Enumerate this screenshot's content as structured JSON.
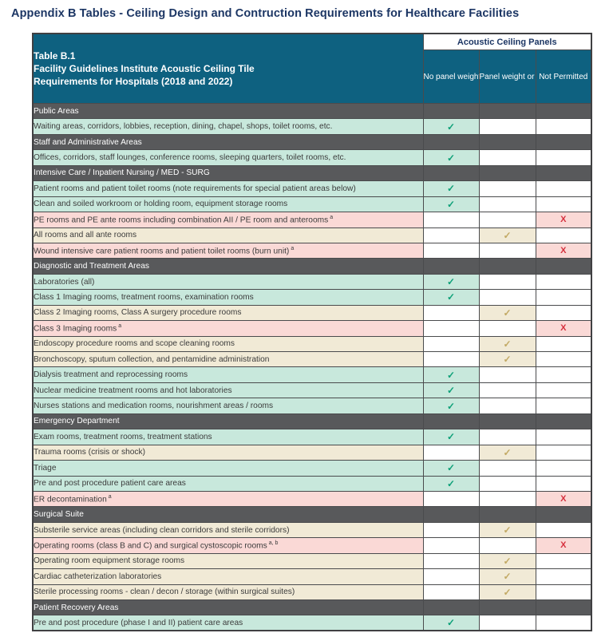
{
  "page_title": "Appendix B Tables - Ceiling Design and Contruction Requirements for Healthcare Facilities",
  "table": {
    "title_lines": [
      "Table B.1",
      "Facility Guidelines Institute Acoustic Ceiling Tile",
      "Requirements for Hospitals (2018 and 2022)"
    ],
    "group_header": "Acoustic Ceiling Panels",
    "columns": [
      "No panel weight or grid gasket requirement",
      "Panel weight or grid gasket requirement",
      "Not Permitted"
    ],
    "marks": {
      "allowed": "✓",
      "conditional": "✓",
      "not_permitted": "X"
    },
    "rows": [
      {
        "type": "section",
        "label": "Public Areas"
      },
      {
        "type": "item",
        "label": "Waiting areas, corridors, lobbies, reception, dining, chapel, shops, toilet rooms, etc.",
        "sup": "",
        "status": "allowed"
      },
      {
        "type": "section",
        "label": "Staff and Administrative Areas"
      },
      {
        "type": "item",
        "label": "Offices, corridors, staff lounges, conference rooms, sleeping quarters, toilet rooms, etc.",
        "sup": "",
        "status": "allowed"
      },
      {
        "type": "section",
        "label": "Intensive Care / Inpatient Nursing / MED - SURG"
      },
      {
        "type": "item",
        "label": "Patient rooms and patient toilet rooms (note requirements for special patient areas below)",
        "sup": "",
        "status": "allowed"
      },
      {
        "type": "item",
        "label": "Clean and soiled workroom or holding room, equipment storage rooms",
        "sup": "",
        "status": "allowed"
      },
      {
        "type": "item",
        "label": "PE rooms and PE ante rooms including combination AII / PE room and anterooms",
        "sup": "a",
        "status": "not_permitted"
      },
      {
        "type": "item",
        "label": "All rooms and all ante rooms",
        "sup": "",
        "status": "conditional"
      },
      {
        "type": "item",
        "label": "Wound intensive care patient rooms and patient toilet rooms (burn unit)",
        "sup": "a",
        "status": "not_permitted"
      },
      {
        "type": "section",
        "label": "Diagnostic and Treatment Areas"
      },
      {
        "type": "item",
        "label": "Laboratories (all)",
        "sup": "",
        "status": "allowed"
      },
      {
        "type": "item",
        "label": "Class 1 Imaging rooms, treatment rooms, examination rooms",
        "sup": "",
        "status": "allowed"
      },
      {
        "type": "item",
        "label": "Class 2 Imaging rooms, Class A surgery procedure rooms",
        "sup": "",
        "status": "conditional"
      },
      {
        "type": "item",
        "label": "Class 3 Imaging rooms",
        "sup": "a",
        "status": "not_permitted"
      },
      {
        "type": "item",
        "label": "Endoscopy procedure rooms and scope cleaning rooms",
        "sup": "",
        "status": "conditional"
      },
      {
        "type": "item",
        "label": "Bronchoscopy, sputum collection, and pentamidine administration",
        "sup": "",
        "status": "conditional"
      },
      {
        "type": "item",
        "label": "Dialysis treatment and reprocessing rooms",
        "sup": "",
        "status": "allowed"
      },
      {
        "type": "item",
        "label": "Nuclear medicine treatment rooms and hot laboratories",
        "sup": "",
        "status": "allowed"
      },
      {
        "type": "item",
        "label": "Nurses stations and medication rooms, nourishment areas / rooms",
        "sup": "",
        "status": "allowed"
      },
      {
        "type": "section",
        "label": "Emergency Department"
      },
      {
        "type": "item",
        "label": "Exam rooms, treatment rooms, treatment stations",
        "sup": "",
        "status": "allowed"
      },
      {
        "type": "item",
        "label": "Trauma rooms (crisis or shock)",
        "sup": "",
        "status": "conditional"
      },
      {
        "type": "item",
        "label": "Triage",
        "sup": "",
        "status": "allowed"
      },
      {
        "type": "item",
        "label": "Pre and post procedure patient care areas",
        "sup": "",
        "status": "allowed"
      },
      {
        "type": "item",
        "label": "ER decontamination",
        "sup": "a",
        "status": "not_permitted"
      },
      {
        "type": "section",
        "label": "Surgical Suite"
      },
      {
        "type": "item",
        "label": "Substerile service areas (including clean corridors and sterile corridors)",
        "sup": "",
        "status": "conditional"
      },
      {
        "type": "item",
        "label": "Operating rooms (class B and C) and surgical cystoscopic rooms",
        "sup": "a, b",
        "status": "not_permitted"
      },
      {
        "type": "item",
        "label": "Operating room equipment storage rooms",
        "sup": "",
        "status": "conditional"
      },
      {
        "type": "item",
        "label": "Cardiac catheterization laboratories",
        "sup": "",
        "status": "conditional"
      },
      {
        "type": "item",
        "label": "Sterile processing rooms - clean / decon / storage (within surgical suites)",
        "sup": "",
        "status": "conditional"
      },
      {
        "type": "section",
        "label": "Patient Recovery Areas"
      },
      {
        "type": "item",
        "label": "Pre and post procedure (phase I and II) patient care areas",
        "sup": "",
        "status": "allowed"
      }
    ]
  },
  "colors": {
    "title_navy": "#1c3664",
    "header_teal": "#0e6180",
    "section_gray": "#58595b",
    "allowed_row": "#c8e8dc",
    "allowed_check": "#0da078",
    "conditional_row": "#f1ead6",
    "conditional_check": "#c2a964",
    "not_permitted_row": "#fad9d6",
    "not_permitted_x": "#d62f3d"
  }
}
